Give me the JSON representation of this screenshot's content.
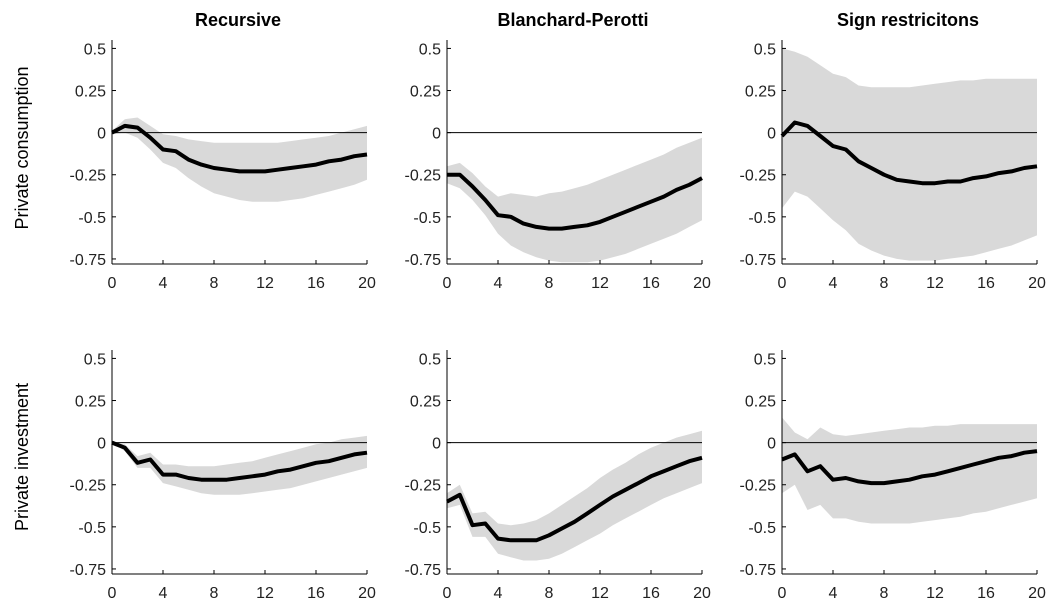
{
  "figure": {
    "columns": [
      "Recursive",
      "Blanchard-Perotti",
      "Sign restricitons"
    ],
    "rows": [
      "Private consumption",
      "Private investment"
    ],
    "yticks": [
      0.5,
      0.25,
      0,
      -0.25,
      -0.5,
      -0.75
    ],
    "ytick_labels": [
      "0.5",
      "0.25",
      "0",
      "-0.25",
      "-0.5",
      "-0.75"
    ],
    "xticks": [
      0,
      4,
      8,
      12,
      16,
      20
    ],
    "xtick_labels": [
      "0",
      "4",
      "8",
      "12",
      "16",
      "20"
    ]
  },
  "colors": {
    "band": "#d9d9d9",
    "line": "#000000",
    "axis": "#000000",
    "zero": "#000000"
  },
  "chart_data": [
    {
      "type": "area",
      "row_label": "Private consumption",
      "title": "Recursive",
      "xlim": [
        0,
        20
      ],
      "ylim": [
        -0.78,
        0.55
      ],
      "x": [
        0,
        1,
        2,
        3,
        4,
        5,
        6,
        7,
        8,
        9,
        10,
        11,
        12,
        13,
        14,
        15,
        16,
        17,
        18,
        19,
        20
      ],
      "series": [
        {
          "role": "median",
          "values": [
            0.0,
            0.04,
            0.03,
            -0.03,
            -0.1,
            -0.11,
            -0.16,
            -0.19,
            -0.21,
            -0.22,
            -0.23,
            -0.23,
            -0.23,
            -0.22,
            -0.21,
            -0.2,
            -0.19,
            -0.17,
            -0.16,
            -0.14,
            -0.13
          ]
        },
        {
          "role": "upper",
          "values": [
            0.01,
            0.08,
            0.09,
            0.04,
            -0.01,
            -0.02,
            -0.04,
            -0.05,
            -0.06,
            -0.06,
            -0.06,
            -0.06,
            -0.06,
            -0.06,
            -0.05,
            -0.04,
            -0.03,
            -0.02,
            0.0,
            0.02,
            0.04
          ]
        },
        {
          "role": "lower",
          "values": [
            -0.01,
            0.0,
            -0.03,
            -0.1,
            -0.18,
            -0.21,
            -0.27,
            -0.32,
            -0.36,
            -0.38,
            -0.4,
            -0.41,
            -0.41,
            -0.41,
            -0.4,
            -0.39,
            -0.37,
            -0.35,
            -0.33,
            -0.31,
            -0.28
          ]
        }
      ]
    },
    {
      "type": "area",
      "row_label": "Private consumption",
      "title": "Blanchard-Perotti",
      "xlim": [
        0,
        20
      ],
      "ylim": [
        -0.78,
        0.55
      ],
      "x": [
        0,
        1,
        2,
        3,
        4,
        5,
        6,
        7,
        8,
        9,
        10,
        11,
        12,
        13,
        14,
        15,
        16,
        17,
        18,
        19,
        20
      ],
      "series": [
        {
          "role": "median",
          "values": [
            -0.25,
            -0.25,
            -0.32,
            -0.4,
            -0.49,
            -0.5,
            -0.54,
            -0.56,
            -0.57,
            -0.57,
            -0.56,
            -0.55,
            -0.53,
            -0.5,
            -0.47,
            -0.44,
            -0.41,
            -0.38,
            -0.34,
            -0.31,
            -0.27
          ]
        },
        {
          "role": "upper",
          "values": [
            -0.2,
            -0.18,
            -0.24,
            -0.32,
            -0.38,
            -0.36,
            -0.37,
            -0.38,
            -0.36,
            -0.35,
            -0.33,
            -0.31,
            -0.28,
            -0.25,
            -0.22,
            -0.19,
            -0.16,
            -0.13,
            -0.09,
            -0.06,
            -0.03
          ]
        },
        {
          "role": "lower",
          "values": [
            -0.3,
            -0.33,
            -0.4,
            -0.49,
            -0.6,
            -0.67,
            -0.71,
            -0.74,
            -0.76,
            -0.77,
            -0.77,
            -0.77,
            -0.76,
            -0.74,
            -0.72,
            -0.69,
            -0.66,
            -0.63,
            -0.6,
            -0.56,
            -0.52
          ]
        }
      ]
    },
    {
      "type": "area",
      "row_label": "Private consumption",
      "title": "Sign restricitons",
      "xlim": [
        0,
        20
      ],
      "ylim": [
        -0.78,
        0.55
      ],
      "x": [
        0,
        1,
        2,
        3,
        4,
        5,
        6,
        7,
        8,
        9,
        10,
        11,
        12,
        13,
        14,
        15,
        16,
        17,
        18,
        19,
        20
      ],
      "series": [
        {
          "role": "median",
          "values": [
            -0.02,
            0.06,
            0.04,
            -0.02,
            -0.08,
            -0.1,
            -0.17,
            -0.21,
            -0.25,
            -0.28,
            -0.29,
            -0.3,
            -0.3,
            -0.29,
            -0.29,
            -0.27,
            -0.26,
            -0.24,
            -0.23,
            -0.21,
            -0.2
          ]
        },
        {
          "role": "upper",
          "values": [
            0.5,
            0.48,
            0.45,
            0.4,
            0.35,
            0.33,
            0.28,
            0.27,
            0.27,
            0.27,
            0.27,
            0.28,
            0.29,
            0.3,
            0.31,
            0.31,
            0.32,
            0.32,
            0.32,
            0.32,
            0.32
          ]
        },
        {
          "role": "lower",
          "values": [
            -0.45,
            -0.35,
            -0.38,
            -0.45,
            -0.52,
            -0.58,
            -0.66,
            -0.7,
            -0.73,
            -0.75,
            -0.76,
            -0.76,
            -0.76,
            -0.75,
            -0.74,
            -0.73,
            -0.71,
            -0.69,
            -0.67,
            -0.64,
            -0.61
          ]
        }
      ]
    },
    {
      "type": "area",
      "row_label": "Private investment",
      "title": "Recursive",
      "xlim": [
        0,
        20
      ],
      "ylim": [
        -0.78,
        0.55
      ],
      "x": [
        0,
        1,
        2,
        3,
        4,
        5,
        6,
        7,
        8,
        9,
        10,
        11,
        12,
        13,
        14,
        15,
        16,
        17,
        18,
        19,
        20
      ],
      "series": [
        {
          "role": "median",
          "values": [
            0.0,
            -0.03,
            -0.12,
            -0.1,
            -0.19,
            -0.19,
            -0.21,
            -0.22,
            -0.22,
            -0.22,
            -0.21,
            -0.2,
            -0.19,
            -0.17,
            -0.16,
            -0.14,
            -0.12,
            -0.11,
            -0.09,
            -0.07,
            -0.06
          ]
        },
        {
          "role": "upper",
          "values": [
            0.0,
            -0.01,
            -0.08,
            -0.06,
            -0.13,
            -0.13,
            -0.14,
            -0.14,
            -0.14,
            -0.13,
            -0.12,
            -0.11,
            -0.09,
            -0.07,
            -0.05,
            -0.03,
            -0.01,
            0.0,
            0.02,
            0.03,
            0.04
          ]
        },
        {
          "role": "lower",
          "values": [
            0.0,
            -0.05,
            -0.15,
            -0.15,
            -0.24,
            -0.26,
            -0.28,
            -0.3,
            -0.31,
            -0.31,
            -0.31,
            -0.3,
            -0.29,
            -0.28,
            -0.27,
            -0.25,
            -0.23,
            -0.21,
            -0.19,
            -0.17,
            -0.15
          ]
        }
      ]
    },
    {
      "type": "area",
      "row_label": "Private investment",
      "title": "Blanchard-Perotti",
      "xlim": [
        0,
        20
      ],
      "ylim": [
        -0.78,
        0.55
      ],
      "x": [
        0,
        1,
        2,
        3,
        4,
        5,
        6,
        7,
        8,
        9,
        10,
        11,
        12,
        13,
        14,
        15,
        16,
        17,
        18,
        19,
        20
      ],
      "series": [
        {
          "role": "median",
          "values": [
            -0.35,
            -0.31,
            -0.49,
            -0.48,
            -0.57,
            -0.58,
            -0.58,
            -0.58,
            -0.55,
            -0.51,
            -0.47,
            -0.42,
            -0.37,
            -0.32,
            -0.28,
            -0.24,
            -0.2,
            -0.17,
            -0.14,
            -0.11,
            -0.09
          ]
        },
        {
          "role": "upper",
          "values": [
            -0.3,
            -0.25,
            -0.42,
            -0.41,
            -0.48,
            -0.49,
            -0.48,
            -0.46,
            -0.42,
            -0.37,
            -0.32,
            -0.27,
            -0.21,
            -0.16,
            -0.12,
            -0.07,
            -0.03,
            0.0,
            0.03,
            0.05,
            0.07
          ]
        },
        {
          "role": "lower",
          "values": [
            -0.39,
            -0.37,
            -0.56,
            -0.56,
            -0.66,
            -0.68,
            -0.7,
            -0.7,
            -0.69,
            -0.66,
            -0.62,
            -0.58,
            -0.54,
            -0.49,
            -0.45,
            -0.41,
            -0.37,
            -0.33,
            -0.3,
            -0.27,
            -0.24
          ]
        }
      ]
    },
    {
      "type": "area",
      "row_label": "Private investment",
      "title": "Sign restricitons",
      "xlim": [
        0,
        20
      ],
      "ylim": [
        -0.78,
        0.55
      ],
      "x": [
        0,
        1,
        2,
        3,
        4,
        5,
        6,
        7,
        8,
        9,
        10,
        11,
        12,
        13,
        14,
        15,
        16,
        17,
        18,
        19,
        20
      ],
      "series": [
        {
          "role": "median",
          "values": [
            -0.1,
            -0.07,
            -0.17,
            -0.14,
            -0.22,
            -0.21,
            -0.23,
            -0.24,
            -0.24,
            -0.23,
            -0.22,
            -0.2,
            -0.19,
            -0.17,
            -0.15,
            -0.13,
            -0.11,
            -0.09,
            -0.08,
            -0.06,
            -0.05
          ]
        },
        {
          "role": "upper",
          "values": [
            0.15,
            0.06,
            0.02,
            0.09,
            0.05,
            0.04,
            0.05,
            0.06,
            0.07,
            0.08,
            0.09,
            0.09,
            0.1,
            0.1,
            0.11,
            0.11,
            0.11,
            0.11,
            0.11,
            0.11,
            0.11
          ]
        },
        {
          "role": "lower",
          "values": [
            -0.3,
            -0.25,
            -0.4,
            -0.37,
            -0.45,
            -0.45,
            -0.47,
            -0.48,
            -0.48,
            -0.48,
            -0.48,
            -0.47,
            -0.46,
            -0.45,
            -0.44,
            -0.42,
            -0.41,
            -0.39,
            -0.37,
            -0.35,
            -0.33
          ]
        }
      ]
    }
  ]
}
